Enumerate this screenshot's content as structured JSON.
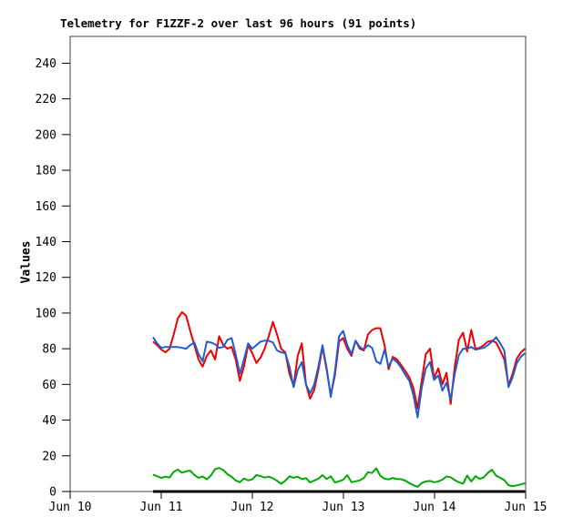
{
  "colors": {
    "background": "#ffffff",
    "frame": "#404040",
    "text": "#000000",
    "red_series": "#ee0000",
    "blue_series": "#1e5ed2",
    "green_series": "#00aa00",
    "black_series": "#000000"
  },
  "chart_data": {
    "type": "line",
    "title": "Telemetry for F1ZZF-2 over last 96 hours (91 points)",
    "ylabel": "Values",
    "xlabel": "",
    "grid": false,
    "legend": "none",
    "points_per_series": 91,
    "x_start_day": 0.91,
    "x_step_day": 0.04537,
    "x_axis": {
      "tick_labels": [
        "Jun 10",
        "Jun 11",
        "Jun 12",
        "Jun 13",
        "Jun 14",
        "Jun 15"
      ],
      "tick_positions_days": [
        0,
        1,
        2,
        3,
        4,
        5
      ],
      "range_days": [
        0,
        5
      ]
    },
    "y_axis": {
      "ticks": [
        0,
        20,
        40,
        60,
        80,
        100,
        120,
        140,
        160,
        180,
        200,
        220,
        240
      ],
      "range": [
        0,
        255
      ]
    },
    "series": [
      {
        "id": "black-series",
        "color": "#000000",
        "constant": 0,
        "width": 3
      },
      {
        "id": "green-series",
        "color": "#00aa00",
        "width": 2,
        "values": [
          9.5,
          8.5,
          7.6,
          8.3,
          7.8,
          11,
          12.3,
          10.5,
          11.3,
          11.7,
          9.3,
          7.6,
          8.4,
          6.8,
          9,
          12.5,
          13.2,
          12,
          9.7,
          8.2,
          6.2,
          5.2,
          7.3,
          6.2,
          6.8,
          9.2,
          8.6,
          7.8,
          8.3,
          7.4,
          6,
          4.3,
          6,
          8.5,
          7.7,
          8.3,
          7,
          7.5,
          5.1,
          6.1,
          7.2,
          9.2,
          7,
          8.5,
          5.1,
          5.7,
          6.6,
          9.2,
          5.2,
          5.7,
          6.2,
          7.6,
          10.8,
          10.4,
          13,
          8.7,
          7.2,
          6.8,
          7.6,
          7,
          6.9,
          6.1,
          4.7,
          3.5,
          2.6,
          4.8,
          5.6,
          5.9,
          5.2,
          5.6,
          6.7,
          8.4,
          8,
          6.4,
          5.2,
          4.4,
          8.9,
          5.6,
          8.6,
          7.1,
          7.9,
          10.4,
          12.2,
          8.8,
          7.7,
          6.4,
          3.5,
          3,
          3.4,
          4,
          4.6
        ]
      },
      {
        "id": "red-series",
        "color": "#ee0000",
        "width": 2,
        "values": [
          84,
          82,
          79.5,
          78,
          80,
          88,
          97,
          100.5,
          98.5,
          90,
          82,
          74,
          70,
          76,
          79,
          74,
          87,
          82,
          80,
          81,
          74,
          62,
          70,
          82,
          77.5,
          72,
          75,
          80,
          87,
          95,
          88,
          80,
          78,
          66,
          59,
          76,
          83,
          60,
          52,
          57,
          68,
          81,
          68,
          54,
          65,
          84,
          86,
          80,
          76,
          84.5,
          80,
          79,
          88,
          90.5,
          91.5,
          91.5,
          82,
          68.5,
          75.5,
          74,
          71,
          67.5,
          64,
          58,
          46.5,
          62,
          77,
          80,
          63.5,
          69,
          60,
          66.5,
          49,
          70,
          85,
          89,
          78.5,
          90.5,
          80,
          80.5,
          82,
          84,
          84.5,
          83.5,
          79,
          74,
          59.5,
          66,
          74.5,
          78,
          80
        ]
      },
      {
        "id": "blue-series",
        "color": "#1e5ed2",
        "width": 2,
        "values": [
          86.5,
          83,
          80.5,
          81,
          81,
          81,
          81,
          80.5,
          80,
          82,
          83.5,
          77,
          73,
          84,
          83.5,
          82.5,
          80.5,
          81,
          85,
          86,
          77,
          66,
          74,
          83,
          80,
          82,
          84,
          84.5,
          84.5,
          83.5,
          79,
          78,
          77.5,
          70,
          58.5,
          68,
          72.5,
          60,
          55,
          60,
          70,
          82,
          69,
          53,
          67,
          87,
          90,
          82,
          77,
          84.5,
          81,
          79.5,
          82,
          80.5,
          73,
          71.5,
          79.5,
          70,
          74.5,
          72.5,
          69.5,
          65.5,
          62,
          54,
          41.5,
          58,
          69,
          72.5,
          62.5,
          65,
          56.5,
          61,
          51.5,
          66,
          76.5,
          80,
          80,
          81,
          79.5,
          80,
          80.5,
          82,
          84,
          86.5,
          83,
          79,
          58.5,
          64,
          72,
          75.5,
          77.5
        ]
      }
    ]
  }
}
